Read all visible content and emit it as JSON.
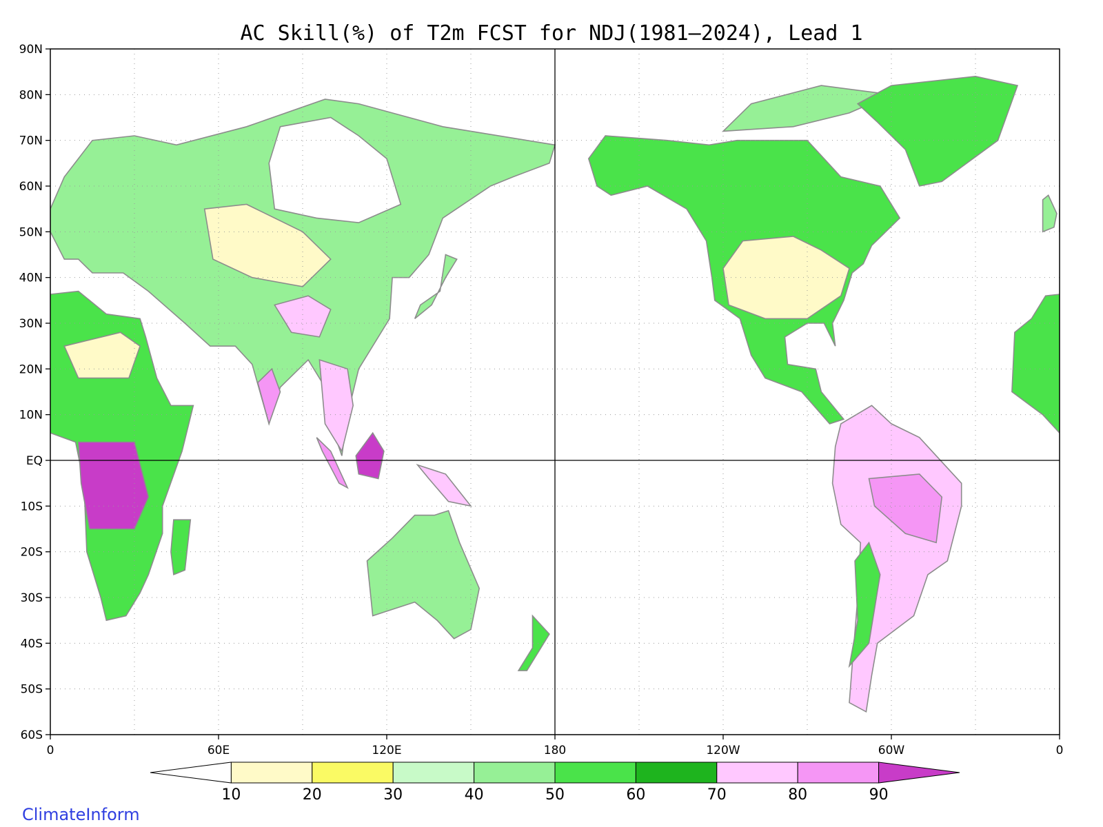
{
  "title": "AC Skill(%) of T2m FCST for NDJ(1981–2024), Lead 1",
  "credit": "ClimateInform",
  "map": {
    "type": "gridded-skill-map",
    "projection": "equirectangular, Pacific-centered",
    "lon_range": [
      0,
      360
    ],
    "lat_range": [
      -60,
      90
    ],
    "grid": "dotted gray",
    "land_outline_color": "#8c8c8c",
    "reference_lines": [
      "equator",
      "180 meridian"
    ],
    "lat_ticks": [
      {
        "lat": 90,
        "label": "90N"
      },
      {
        "lat": 80,
        "label": "80N"
      },
      {
        "lat": 70,
        "label": "70N"
      },
      {
        "lat": 60,
        "label": "60N"
      },
      {
        "lat": 50,
        "label": "50N"
      },
      {
        "lat": 40,
        "label": "40N"
      },
      {
        "lat": 30,
        "label": "30N"
      },
      {
        "lat": 20,
        "label": "20N"
      },
      {
        "lat": 10,
        "label": "10N"
      },
      {
        "lat": 0,
        "label": "EQ"
      },
      {
        "lat": -10,
        "label": "10S"
      },
      {
        "lat": -20,
        "label": "20S"
      },
      {
        "lat": -30,
        "label": "30S"
      },
      {
        "lat": -40,
        "label": "40S"
      },
      {
        "lat": -50,
        "label": "50S"
      },
      {
        "lat": -60,
        "label": "60S"
      }
    ],
    "lon_ticks": [
      {
        "lon": 0,
        "label": "0"
      },
      {
        "lon": 60,
        "label": "60E"
      },
      {
        "lon": 120,
        "label": "120E"
      },
      {
        "lon": 180,
        "label": "180"
      },
      {
        "lon": 240,
        "label": "120W"
      },
      {
        "lon": 300,
        "label": "60W"
      },
      {
        "lon": 360,
        "label": "0"
      }
    ]
  },
  "colorbar": {
    "levels": [
      "10",
      "20",
      "30",
      "40",
      "50",
      "60",
      "70",
      "80",
      "90"
    ],
    "colors": [
      "#ffffff",
      "#fffac8",
      "#fafa64",
      "#c8fac8",
      "#96f096",
      "#4ae34a",
      "#1eb41e",
      "#ffc8ff",
      "#f596f5",
      "#c83cc8"
    ]
  }
}
